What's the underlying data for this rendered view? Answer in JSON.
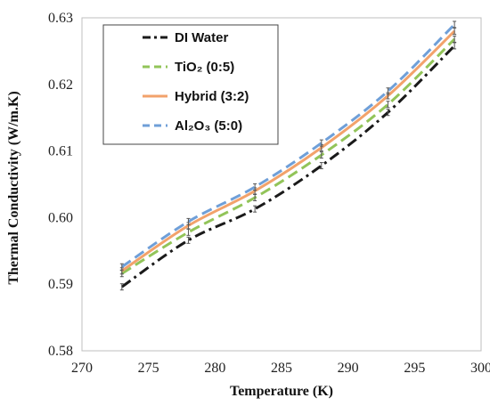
{
  "chart_data": {
    "type": "line",
    "xlabel": "Temperature (K)",
    "ylabel": "Thermal Conductivity (W/m.K)",
    "xlim": [
      270,
      300
    ],
    "ylim": [
      0.58,
      0.63
    ],
    "x_ticks": [
      "270",
      "275",
      "280",
      "285",
      "290",
      "295",
      "300"
    ],
    "y_ticks": [
      "0.58",
      "0.59",
      "0.60",
      "0.61",
      "0.62",
      "0.63"
    ],
    "x": [
      273,
      278,
      283,
      288,
      293,
      298
    ],
    "series": [
      {
        "name": "DI Water",
        "values": [
          0.5896,
          0.5966,
          0.6013,
          0.6078,
          0.6158,
          0.6258
        ],
        "color": "#1a1a1a",
        "dash": "dash-dot"
      },
      {
        "name": "TiO₂ (0:5)",
        "values": [
          0.5916,
          0.5978,
          0.603,
          0.6094,
          0.617,
          0.6268
        ],
        "color": "#92c459",
        "dash": "dashed"
      },
      {
        "name": "Hybrid (3:2)",
        "values": [
          0.592,
          0.5988,
          0.604,
          0.6105,
          0.6183,
          0.628
        ],
        "color": "#f2a26b",
        "dash": "solid"
      },
      {
        "name": "Al₂O₃ (5:0)",
        "values": [
          0.5926,
          0.5994,
          0.6046,
          0.6112,
          0.619,
          0.629
        ],
        "color": "#6f9fd8",
        "dash": "dashed"
      }
    ],
    "error_bars": true,
    "grid": false,
    "legend_position": "top-left"
  }
}
